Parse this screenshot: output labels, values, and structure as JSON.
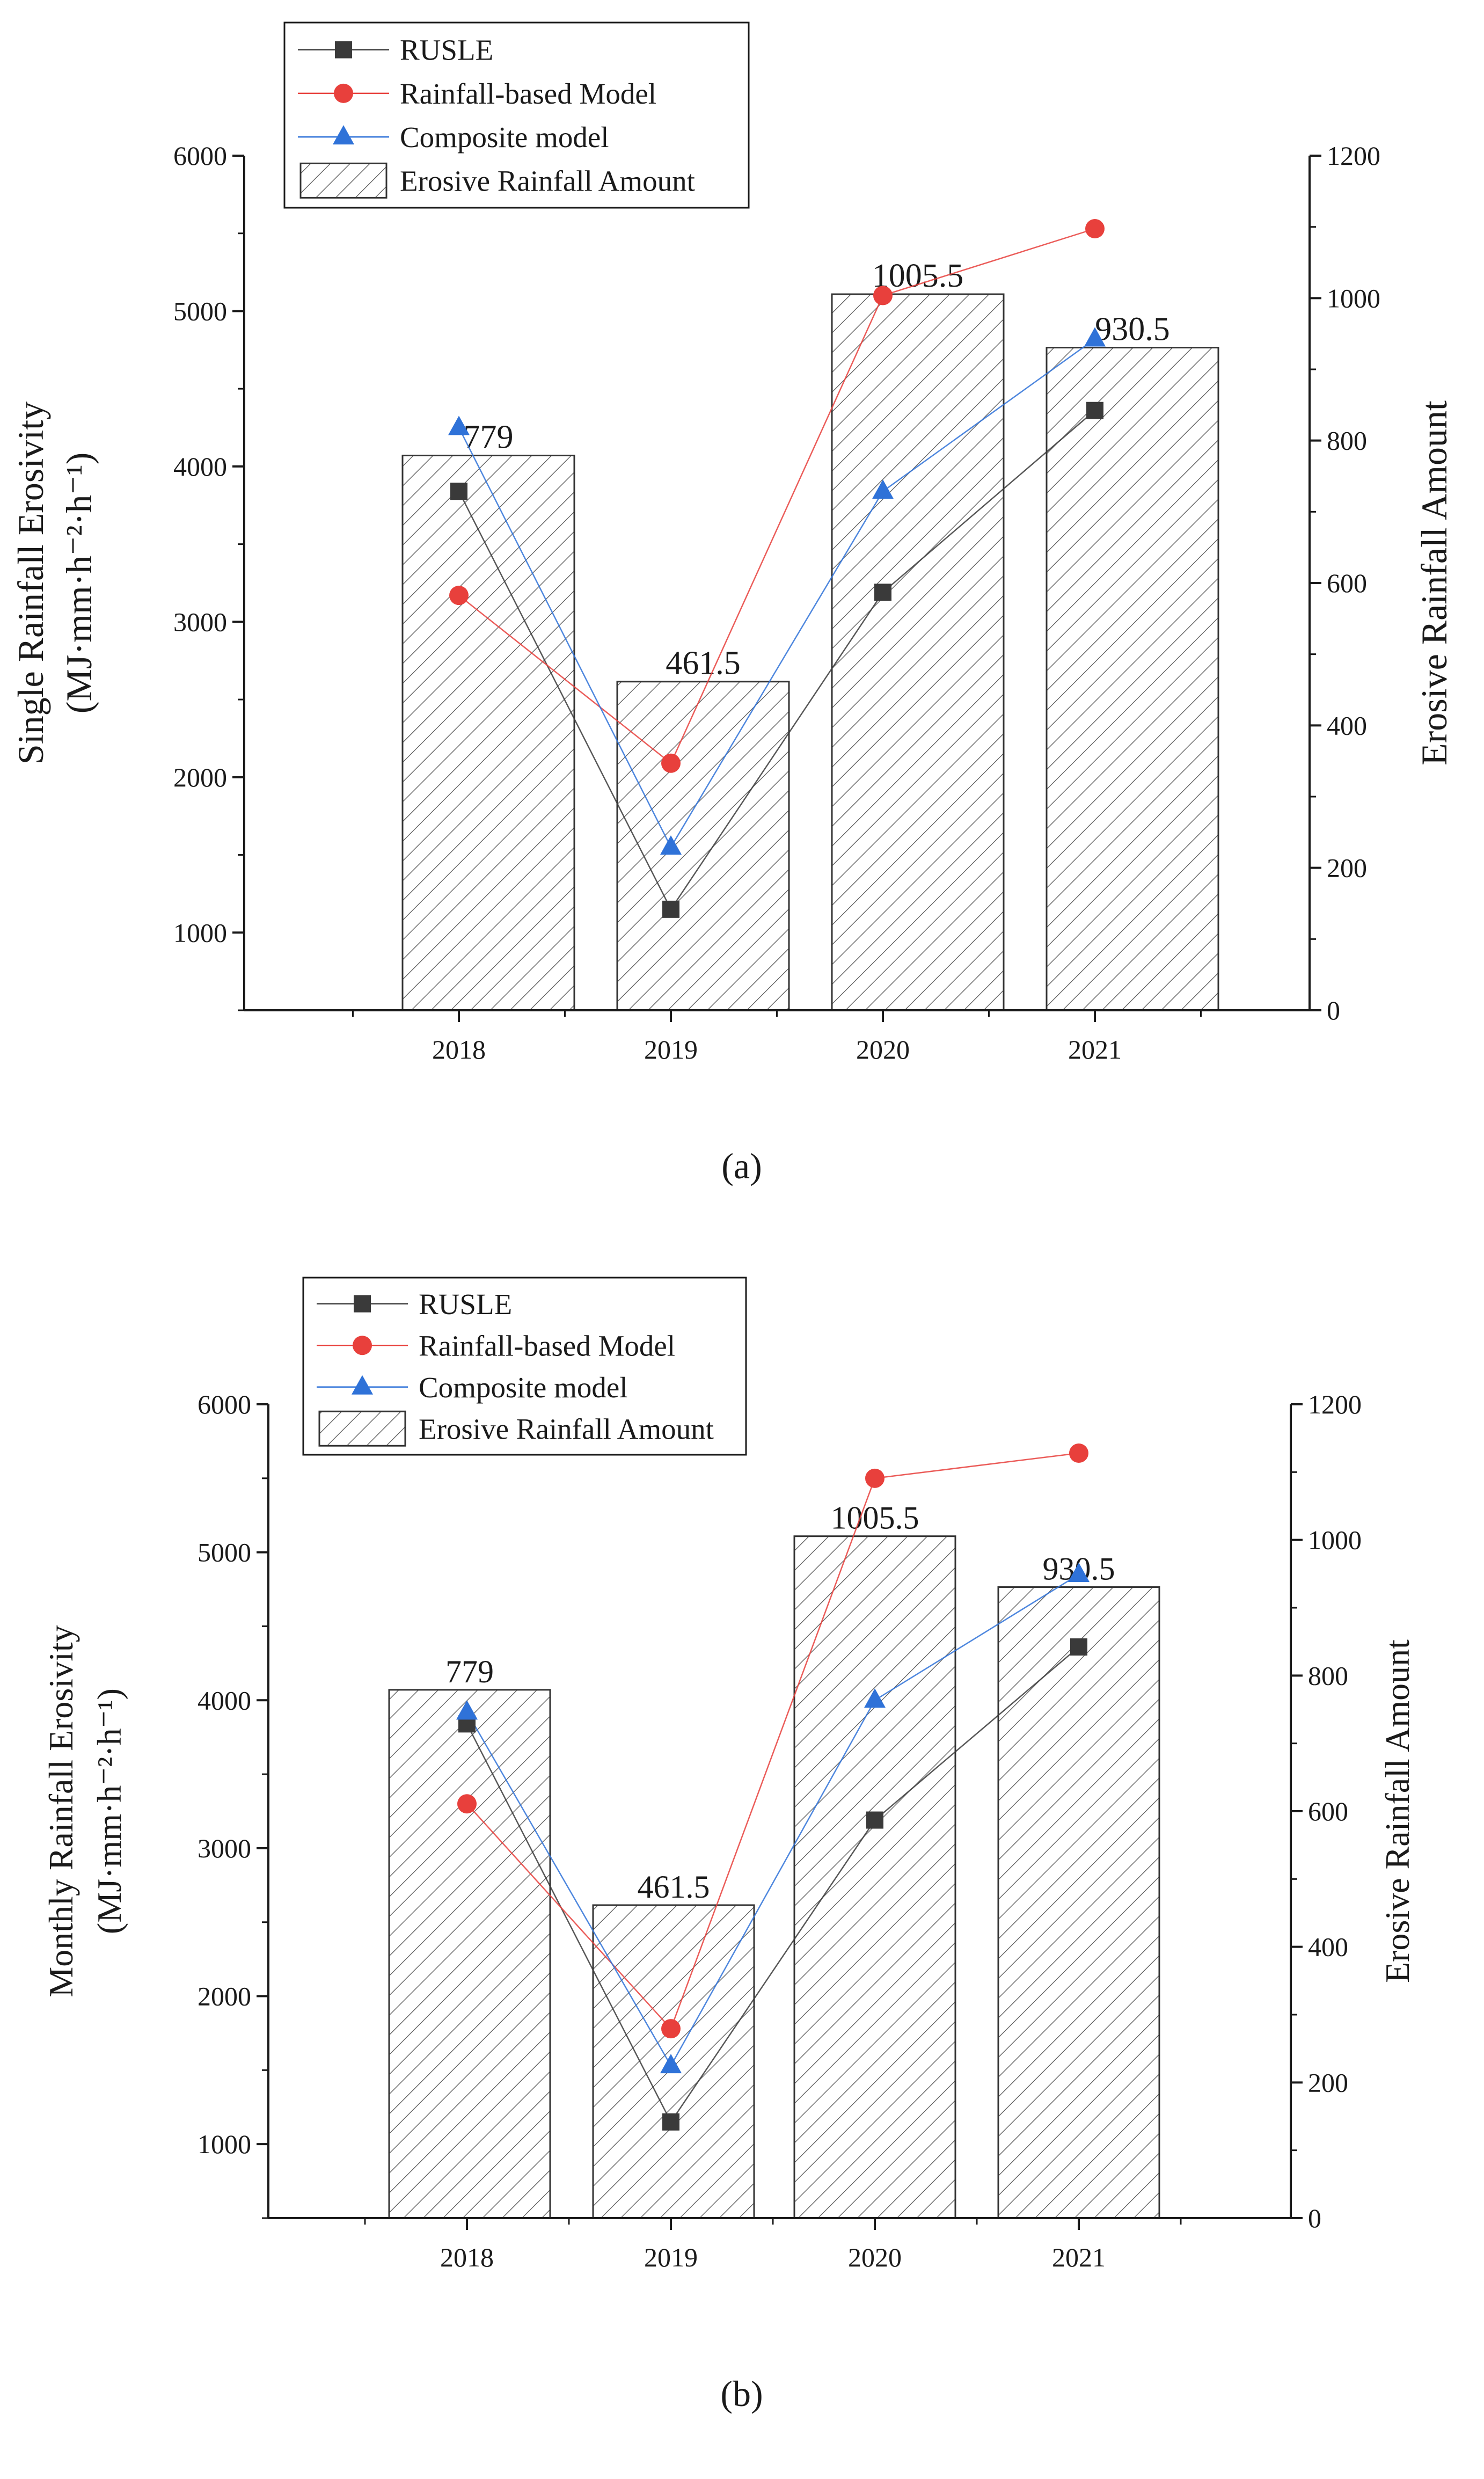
{
  "panels": [
    {
      "caption": "(a)",
      "chart_data": {
        "type": "bar",
        "categories": [
          "2018",
          "2019",
          "2020",
          "2021"
        ],
        "bar_series": {
          "name": "Erosive Rainfall Amount",
          "values": [
            779,
            461.5,
            1005.5,
            930.5
          ],
          "labels": [
            "779",
            "461.5",
            "1005.5",
            "930.5"
          ]
        },
        "series": [
          {
            "name": "RUSLE",
            "type": "line",
            "marker": "square",
            "color": "#3a3a3a",
            "values": [
              3840,
              1150,
              3190,
              4360
            ]
          },
          {
            "name": "Rainfall-based Model",
            "type": "line",
            "marker": "circle",
            "color": "#e8403c",
            "values": [
              3170,
              2090,
              5100,
              5530
            ]
          },
          {
            "name": "Composite model",
            "type": "line",
            "marker": "triangle",
            "color": "#2f72d8",
            "values": [
              4250,
              1550,
              3840,
              4820
            ]
          }
        ],
        "ylabel_left_1": "Single Rainfall Erosivity",
        "ylabel_left_2": "(MJ·mm·h⁻²·h⁻¹)",
        "ylabel_right": "Erosive Rainfall Amount",
        "ylim_left": [
          500,
          6000
        ],
        "yticks_left": [
          "1000",
          "2000",
          "3000",
          "4000",
          "5000",
          "6000"
        ],
        "ylim_right": [
          0,
          1200
        ],
        "yticks_right": [
          "0",
          "200",
          "400",
          "600",
          "800",
          "1000",
          "1200"
        ],
        "legend_position": "top-left",
        "grid": false
      }
    },
    {
      "caption": "(b)",
      "chart_data": {
        "type": "bar",
        "categories": [
          "2018",
          "2019",
          "2020",
          "2021"
        ],
        "bar_series": {
          "name": "Erosive Rainfall Amount",
          "values": [
            779,
            461.5,
            1005.5,
            930.5
          ],
          "labels": [
            "779",
            "461.5",
            "1005.5",
            "930.5"
          ]
        },
        "series": [
          {
            "name": "RUSLE",
            "type": "line",
            "marker": "square",
            "color": "#3a3a3a",
            "values": [
              3840,
              1150,
              3190,
              4360
            ]
          },
          {
            "name": "Rainfall-based Model",
            "type": "line",
            "marker": "circle",
            "color": "#e8403c",
            "values": [
              3300,
              1780,
              5500,
              5670
            ]
          },
          {
            "name": "Composite model",
            "type": "line",
            "marker": "triangle",
            "color": "#2f72d8",
            "values": [
              3920,
              1530,
              4000,
              4850
            ]
          }
        ],
        "ylabel_left_1": "Monthly Rainfall Erosivity",
        "ylabel_left_2": "(MJ·mm·h⁻²·h⁻¹)",
        "ylabel_right": "Erosive Rainfall Amount",
        "ylim_left": [
          500,
          6000
        ],
        "yticks_left": [
          "1000",
          "2000",
          "3000",
          "4000",
          "5000",
          "6000"
        ],
        "ylim_right": [
          0,
          1200
        ],
        "yticks_right": [
          "0",
          "200",
          "400",
          "600",
          "800",
          "1000",
          "1200"
        ],
        "legend_position": "top-left",
        "grid": false
      }
    }
  ]
}
